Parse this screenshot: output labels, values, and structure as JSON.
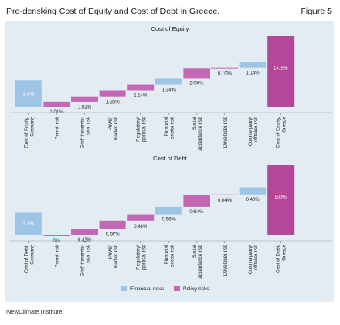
{
  "header": {
    "title": "Pre-derisking Cost of Equity and Cost of Debt in Greece.",
    "figure_label": "Figure 5"
  },
  "footer": {
    "source": "NewClimate Institute"
  },
  "colors": {
    "financial": "#9ec5e6",
    "policy": "#c368b4",
    "total_base": "#9ec5e6",
    "total_final": "#b5479b",
    "panel_bg": "#e4ecf3"
  },
  "legend": [
    {
      "label": "Financial risks",
      "color": "#9ec5e6"
    },
    {
      "label": "Policy risks",
      "color": "#c368b4"
    }
  ],
  "chart_data": [
    {
      "type": "bar",
      "title": "Cost of Equity",
      "categories": [
        "Cost of Equity,\nGermany",
        "Permit risk",
        "Grid/ transmis-\nsion risk",
        "Power\nmarket risk",
        "Regulatory/\npolitical risk",
        "Financial\nsector risk",
        "Social\nacceptance risk",
        "Developer risk",
        "Counterparty/\nofftaker risk",
        "Cost of Equity,\nGreece"
      ],
      "values": [
        5.4,
        1.01,
        1.02,
        1.35,
        1.14,
        1.34,
        2.0,
        0.1,
        1.14,
        14.5
      ],
      "labels": [
        "5.4%",
        "1.01%",
        "1.02%",
        "1.35%",
        "1.14%",
        "1.34%",
        "2.00%",
        "0.10%",
        "1.14%",
        "14.5%"
      ],
      "kinds": [
        "total",
        "policy",
        "policy",
        "policy",
        "policy",
        "financial",
        "policy",
        "policy",
        "financial",
        "total"
      ]
    },
    {
      "type": "bar",
      "title": "Cost of Debt",
      "categories": [
        "Cost of Debt,\nGermany",
        "Permit risk",
        "Grid/ transmis-\nsion risk",
        "Power\nmarket risk",
        "Regulatory/\npolitical risk",
        "Financial\nsector risk",
        "Social\nacceptance risk",
        "Developer risk",
        "Counterparty/\nofftaker risk",
        "Cost of Debt,\nGreece"
      ],
      "values": [
        1.6,
        0,
        0.43,
        0.57,
        0.48,
        0.56,
        0.84,
        0.04,
        0.48,
        5.0
      ],
      "labels": [
        "1.6%",
        "0%",
        "0.43%",
        "0.57%",
        "0.48%",
        "0.56%",
        "0.84%",
        "0.04%",
        "0.48%",
        "5.0%"
      ],
      "kinds": [
        "total",
        "policy",
        "policy",
        "policy",
        "policy",
        "financial",
        "policy",
        "policy",
        "financial",
        "total"
      ]
    }
  ]
}
